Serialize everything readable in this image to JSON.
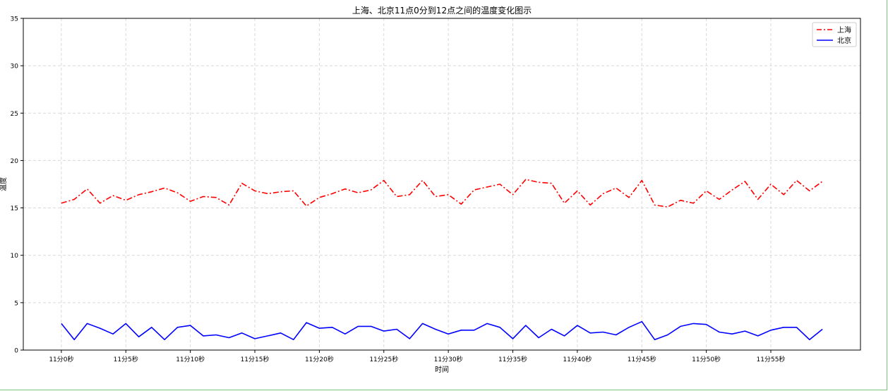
{
  "chart_data": {
    "type": "line",
    "title": "上海、北京11点0分到12点之间的温度变化图示",
    "xlabel": "时间",
    "ylabel": "温度",
    "ylim": [
      0,
      35
    ],
    "yticks": [
      0,
      5,
      10,
      15,
      20,
      25,
      30,
      35
    ],
    "xlim": [
      -2.95,
      61.95
    ],
    "xticks": [
      0,
      5,
      10,
      15,
      20,
      25,
      30,
      35,
      40,
      45,
      50,
      55
    ],
    "xtick_labels": [
      "11分0秒",
      "11分5秒",
      "11分10秒",
      "11分15秒",
      "11分20秒",
      "11分25秒",
      "11分30秒",
      "11分35秒",
      "11分40秒",
      "11分45秒",
      "11分50秒",
      "11分55秒"
    ],
    "x": [
      0,
      1,
      2,
      3,
      4,
      5,
      6,
      7,
      8,
      9,
      10,
      11,
      12,
      13,
      14,
      15,
      16,
      17,
      18,
      19,
      20,
      21,
      22,
      23,
      24,
      25,
      26,
      27,
      28,
      29,
      30,
      31,
      32,
      33,
      34,
      35,
      36,
      37,
      38,
      39,
      40,
      41,
      42,
      43,
      44,
      45,
      46,
      47,
      48,
      49,
      50,
      51,
      52,
      53,
      54,
      55,
      56,
      57,
      58,
      59
    ],
    "grid": true,
    "legend_position": "upper right",
    "series": [
      {
        "name": "上海",
        "color": "#ff0000",
        "style": "dashdot",
        "values": [
          15.5,
          15.9,
          17.0,
          15.5,
          16.3,
          15.8,
          16.4,
          16.7,
          17.1,
          16.6,
          15.7,
          16.2,
          16.1,
          15.3,
          17.6,
          16.8,
          16.5,
          16.7,
          16.8,
          15.2,
          16.1,
          16.5,
          17.0,
          16.6,
          16.9,
          17.9,
          16.2,
          16.4,
          17.9,
          16.2,
          16.4,
          15.4,
          16.9,
          17.2,
          17.5,
          16.4,
          18.0,
          17.7,
          17.6,
          15.5,
          16.8,
          15.3,
          16.5,
          17.1,
          16.1,
          17.9,
          15.3,
          15.1,
          15.8,
          15.5,
          16.8,
          15.9,
          16.9,
          17.8,
          15.9,
          17.5,
          16.4,
          17.9,
          16.8,
          17.8
        ]
      },
      {
        "name": "北京",
        "color": "#0000ff",
        "style": "solid",
        "values": [
          2.8,
          1.1,
          2.8,
          2.3,
          1.7,
          2.8,
          1.4,
          2.4,
          1.1,
          2.4,
          2.6,
          1.5,
          1.6,
          1.3,
          1.8,
          1.2,
          1.5,
          1.8,
          1.1,
          2.9,
          2.3,
          2.4,
          1.7,
          2.5,
          2.5,
          2.0,
          2.2,
          1.2,
          2.8,
          2.2,
          1.7,
          2.1,
          2.1,
          2.8,
          2.4,
          1.2,
          2.6,
          1.3,
          2.2,
          1.5,
          2.6,
          1.8,
          1.9,
          1.6,
          2.4,
          3.0,
          1.1,
          1.6,
          2.5,
          2.8,
          2.7,
          1.9,
          1.7,
          2.0,
          1.5,
          2.1,
          2.4,
          2.4,
          1.1,
          2.2
        ]
      }
    ]
  }
}
